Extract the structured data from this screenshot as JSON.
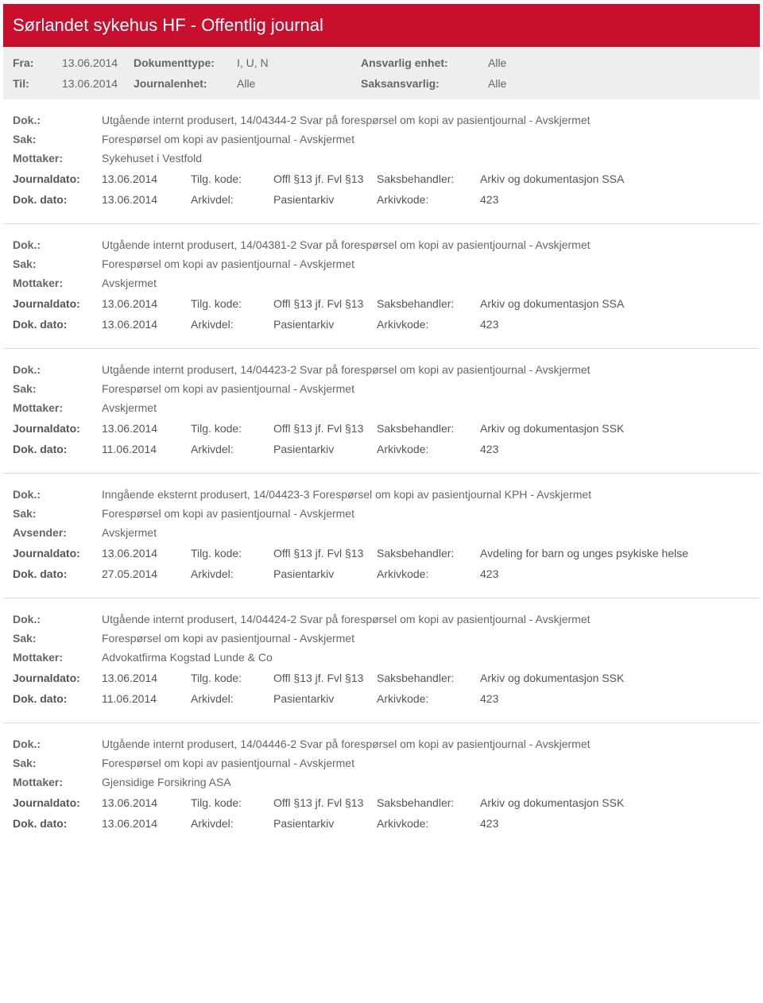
{
  "header": {
    "title": "Sørlandet sykehus HF - Offentlig journal",
    "fra_label": "Fra:",
    "fra_value": "13.06.2014",
    "til_label": "Til:",
    "til_value": "13.06.2014",
    "doktype_label": "Dokumenttype:",
    "doktype_value": "I, U, N",
    "journalenhet_label": "Journalenhet:",
    "journalenhet_value": "Alle",
    "ansvarlig_label": "Ansvarlig enhet:",
    "ansvarlig_value": "Alle",
    "saksansvarlig_label": "Saksansvarlig:",
    "saksansvarlig_value": "Alle"
  },
  "labels": {
    "dok": "Dok.:",
    "sak": "Sak:",
    "mottaker": "Mottaker:",
    "avsender": "Avsender:",
    "journaldato": "Journaldato:",
    "dokdato": "Dok. dato:",
    "tilgkode": "Tilg. kode:",
    "arkivdel": "Arkivdel:",
    "saksbehandler": "Saksbehandler:",
    "arkivkode": "Arkivkode:"
  },
  "entries": [
    {
      "dok": "Utgående internt produsert, 14/04344-2 Svar på forespørsel om kopi av pasientjournal - Avskjermet",
      "sak": "Forespørsel om kopi av pasientjournal - Avskjermet",
      "party_label": "Mottaker:",
      "party_value": "Sykehuset i Vestfold",
      "journaldato": "13.06.2014",
      "tilgkode": "Offl §13 jf. Fvl §13",
      "saksbehandler": "Arkiv og dokumentasjon SSA",
      "dokdato": "13.06.2014",
      "arkivdel": "Pasientarkiv",
      "arkivkode": "423"
    },
    {
      "dok": "Utgående internt produsert, 14/04381-2 Svar på forespørsel om kopi av pasientjournal - Avskjermet",
      "sak": "Forespørsel om kopi av pasientjournal - Avskjermet",
      "party_label": "Mottaker:",
      "party_value": "Avskjermet",
      "journaldato": "13.06.2014",
      "tilgkode": "Offl §13 jf. Fvl §13",
      "saksbehandler": "Arkiv og dokumentasjon SSA",
      "dokdato": "13.06.2014",
      "arkivdel": "Pasientarkiv",
      "arkivkode": "423"
    },
    {
      "dok": "Utgående internt produsert, 14/04423-2 Svar på forespørsel om kopi av pasientjournal - Avskjermet",
      "sak": "Forespørsel om kopi av pasientjournal - Avskjermet",
      "party_label": "Mottaker:",
      "party_value": "Avskjermet",
      "journaldato": "13.06.2014",
      "tilgkode": "Offl §13 jf. Fvl §13",
      "saksbehandler": "Arkiv og dokumentasjon SSK",
      "dokdato": "11.06.2014",
      "arkivdel": "Pasientarkiv",
      "arkivkode": "423"
    },
    {
      "dok": "Inngående eksternt produsert, 14/04423-3 Forespørsel om kopi av pasientjournal KPH - Avskjermet",
      "sak": "Forespørsel om kopi av pasientjournal - Avskjermet",
      "party_label": "Avsender:",
      "party_value": "Avskjermet",
      "journaldato": "13.06.2014",
      "tilgkode": "Offl §13 jf. Fvl §13",
      "saksbehandler": "Avdeling for barn og unges psykiske helse",
      "dokdato": "27.05.2014",
      "arkivdel": "Pasientarkiv",
      "arkivkode": "423"
    },
    {
      "dok": "Utgående internt produsert, 14/04424-2 Svar på forespørsel om kopi av pasientjournal - Avskjermet",
      "sak": "Forespørsel om kopi av pasientjournal - Avskjermet",
      "party_label": "Mottaker:",
      "party_value": "Advokatfirma Kogstad Lunde & Co",
      "journaldato": "13.06.2014",
      "tilgkode": "Offl §13 jf. Fvl §13",
      "saksbehandler": "Arkiv og dokumentasjon SSK",
      "dokdato": "11.06.2014",
      "arkivdel": "Pasientarkiv",
      "arkivkode": "423"
    },
    {
      "dok": "Utgående internt produsert, 14/04446-2 Svar på forespørsel om kopi av pasientjournal - Avskjermet",
      "sak": "Forespørsel om kopi av pasientjournal - Avskjermet",
      "party_label": "Mottaker:",
      "party_value": "Gjensidige Forsikring ASA",
      "journaldato": "13.06.2014",
      "tilgkode": "Offl §13 jf. Fvl §13",
      "saksbehandler": "Arkiv og dokumentasjon SSK",
      "dokdato": "13.06.2014",
      "arkivdel": "Pasientarkiv",
      "arkivkode": "423"
    }
  ]
}
